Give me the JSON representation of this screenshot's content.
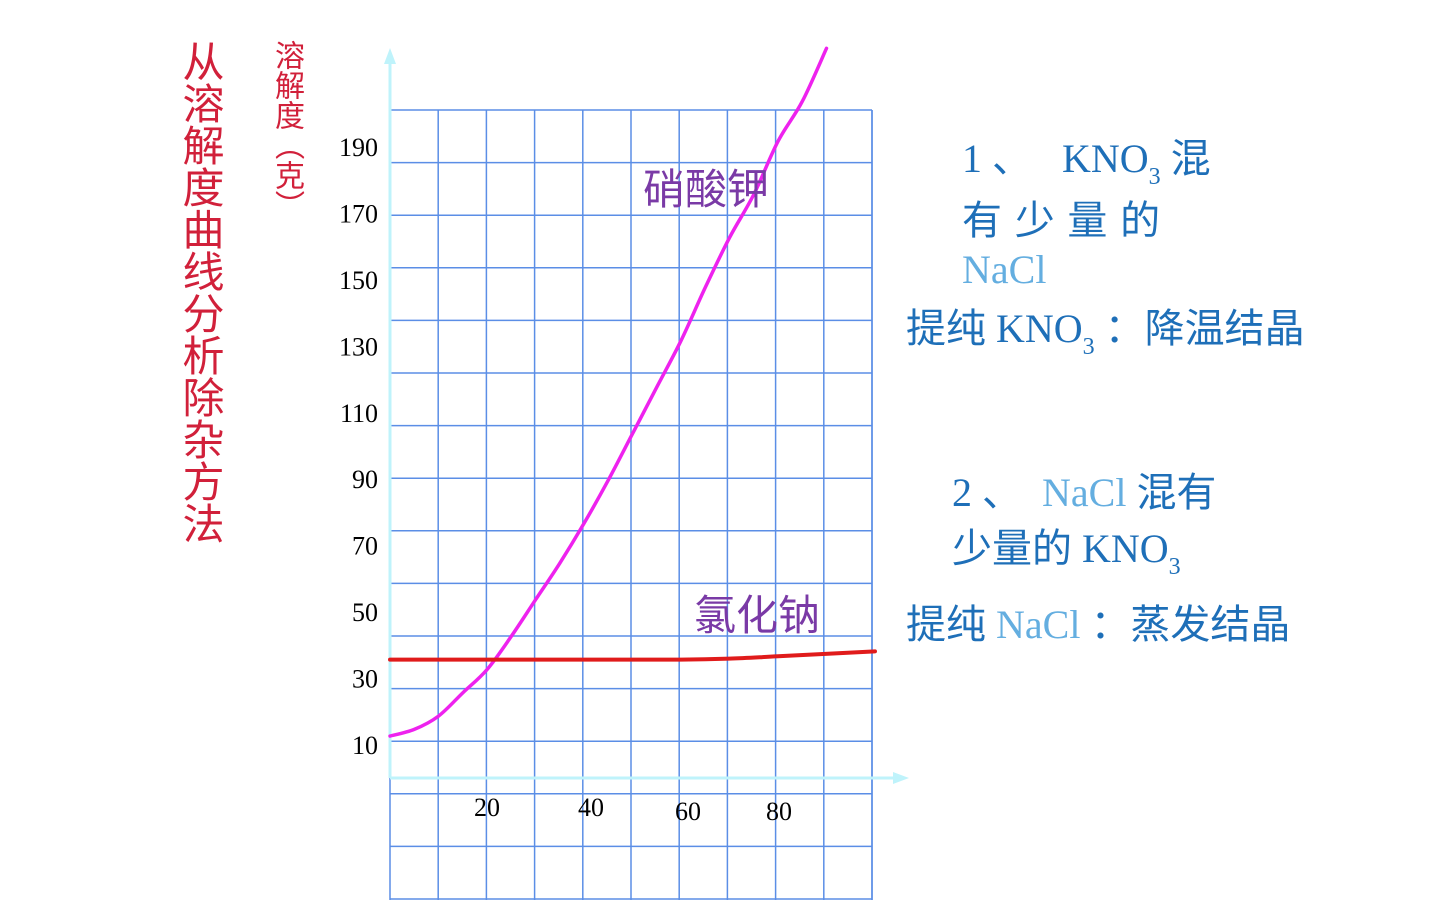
{
  "title": "从溶解度曲线分析除杂方法",
  "chart_data": {
    "type": "line",
    "ylabel": "溶解度（克）",
    "xlabel": "",
    "x_ticks": [
      20,
      40,
      60,
      80
    ],
    "y_ticks": [
      10,
      30,
      50,
      70,
      90,
      110,
      130,
      150,
      170,
      190
    ],
    "grid": true,
    "series": [
      {
        "name": "硝酸钾",
        "color": "#ee22ee",
        "x": [
          0,
          5,
          10,
          15,
          20,
          25,
          30,
          35,
          40,
          45,
          50,
          55,
          60,
          65,
          70,
          75,
          80,
          85,
          90
        ],
        "values": [
          13,
          15,
          19,
          26,
          33,
          43,
          54,
          65,
          77,
          90,
          104,
          118,
          132,
          148,
          163,
          176,
          192,
          204,
          220
        ]
      },
      {
        "name": "氯化钠",
        "color": "#e01b1b",
        "x": [
          0,
          20,
          40,
          60,
          70,
          80,
          100
        ],
        "values": [
          36,
          36,
          36,
          36,
          36.3,
          37,
          38.5
        ]
      }
    ]
  },
  "notes": {
    "note1": {
      "num": "1 、",
      "formula": "KNO",
      "sub": "3",
      "line1_cn": "混",
      "line2": "有 少 量 的",
      "line3": "NaCl",
      "method_prefix": "提纯",
      "method_formula": "KNO",
      "method_sub": "3",
      "method_suffix": "：降温结晶"
    },
    "note2": {
      "num": "2 、",
      "nacl": "NaCl",
      "line1_cn": "混有",
      "line2_cn": "少量的",
      "line2_formula": "KNO",
      "line2_sub": "3",
      "method_prefix": "提纯",
      "method_nacl": "NaCl",
      "method_suffix": "：蒸发结晶"
    }
  },
  "colors": {
    "grid": "#5b8ee6",
    "axis": "#bff3fb",
    "label_purple": "#7a3aa6",
    "title_red": "#d1203a",
    "note_blue": "#1e6fb8",
    "nacl_light_blue": "#64aee0"
  }
}
